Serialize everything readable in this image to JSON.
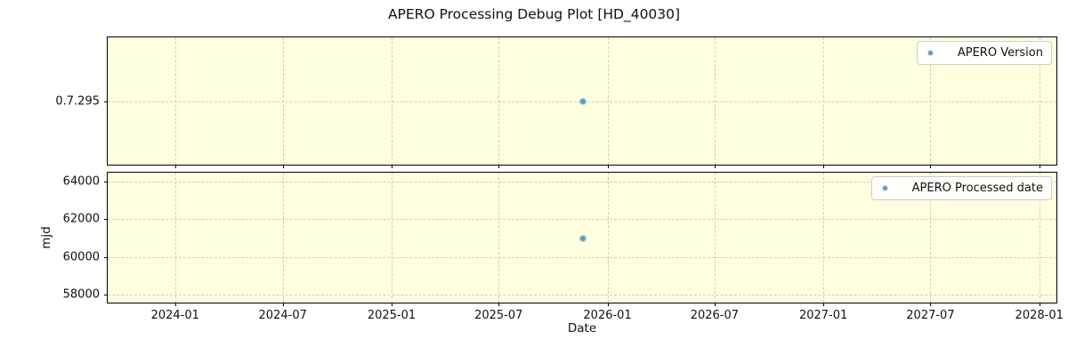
{
  "title": "APERO Processing Debug Plot [HD_40030]",
  "colors": {
    "marker": "#5b9bc8",
    "grid": "#cccccc",
    "plot_bg": "#ffffe0",
    "spine": "#000000",
    "legend_border": "#cccccc"
  },
  "x_axis": {
    "label": "Date",
    "epoch": "days since 2024-01-01",
    "lim_days": [
      -114,
      1490
    ],
    "ticks": [
      {
        "label": "2024-01",
        "days": 0
      },
      {
        "label": "2024-07",
        "days": 182
      },
      {
        "label": "2025-01",
        "days": 366
      },
      {
        "label": "2025-07",
        "days": 547
      },
      {
        "label": "2026-01",
        "days": 731
      },
      {
        "label": "2026-07",
        "days": 912
      },
      {
        "label": "2027-01",
        "days": 1096
      },
      {
        "label": "2027-07",
        "days": 1277
      },
      {
        "label": "2028-01",
        "days": 1461
      }
    ]
  },
  "chart_data": [
    {
      "type": "scatter",
      "legend": "APERO Version",
      "legend_position": "upper right",
      "grid": true,
      "ylabel": "",
      "ylim": [
        -1,
        1
      ],
      "yticks": [
        {
          "label": "0.7.295",
          "value": 0
        }
      ],
      "points": [
        {
          "date": "2025-11-21",
          "days": 690,
          "value": 0,
          "display_value": "0.7.295"
        }
      ]
    },
    {
      "type": "scatter",
      "legend": "APERO Processed date",
      "legend_position": "upper right",
      "grid": true,
      "ylabel": "mjd",
      "ylim": [
        57600,
        64470
      ],
      "yticks": [
        {
          "label": "58000",
          "value": 58000
        },
        {
          "label": "60000",
          "value": 60000
        },
        {
          "label": "62000",
          "value": 62000
        },
        {
          "label": "64000",
          "value": 64000
        }
      ],
      "points": [
        {
          "date": "2025-11-21",
          "days": 690,
          "value": 61000,
          "display_value": "mjd 61000"
        }
      ]
    }
  ]
}
